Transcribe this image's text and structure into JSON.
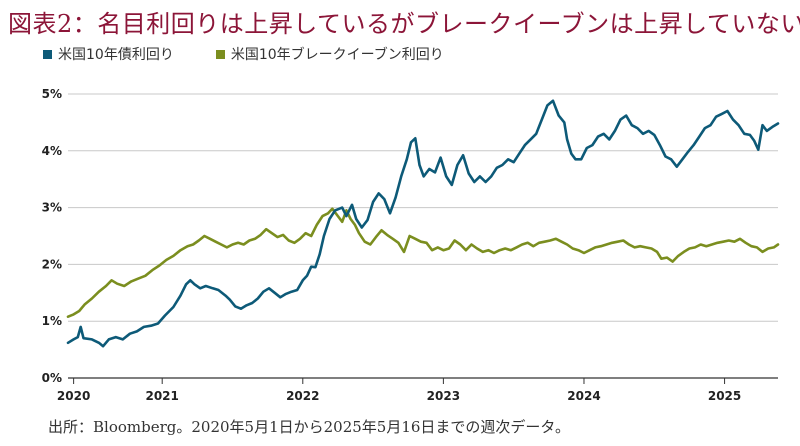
{
  "title": "図表2：名目利回りは上昇しているがブレークイーブンは上昇していない",
  "legend": [
    {
      "label": "米国10年債利回り",
      "color": "#0d5a78"
    },
    {
      "label": "米国10年ブレークイーブン利回り",
      "color": "#7b8e1f"
    }
  ],
  "source": "出所：Bloomberg。2020年5月1日から2025年5月16日までの週次データ。",
  "chart_data": {
    "type": "line",
    "title": "図表2：名目利回りは上昇しているがブレークイーブンは上昇していない",
    "xlabel": "",
    "ylabel": "",
    "x_ticks": [
      "2020",
      "2021",
      "2022",
      "2023",
      "2024",
      "2025"
    ],
    "y_ticks": [
      "0%",
      "1%",
      "2%",
      "3%",
      "4%",
      "5%"
    ],
    "ylim": [
      0,
      5
    ],
    "xlim": [
      2020.33,
      2025.38
    ],
    "grid": "horizontal",
    "series": [
      {
        "name": "米国10年債利回り",
        "color": "#0d5a78",
        "points": [
          [
            2020.33,
            0.62
          ],
          [
            2020.37,
            0.68
          ],
          [
            2020.4,
            0.72
          ],
          [
            2020.42,
            0.9
          ],
          [
            2020.44,
            0.7
          ],
          [
            2020.5,
            0.68
          ],
          [
            2020.55,
            0.62
          ],
          [
            2020.58,
            0.56
          ],
          [
            2020.62,
            0.68
          ],
          [
            2020.67,
            0.72
          ],
          [
            2020.72,
            0.68
          ],
          [
            2020.77,
            0.78
          ],
          [
            2020.82,
            0.82
          ],
          [
            2020.87,
            0.9
          ],
          [
            2020.92,
            0.92
          ],
          [
            2020.97,
            0.96
          ],
          [
            2021.02,
            1.1
          ],
          [
            2021.08,
            1.25
          ],
          [
            2021.13,
            1.45
          ],
          [
            2021.17,
            1.65
          ],
          [
            2021.2,
            1.72
          ],
          [
            2021.23,
            1.65
          ],
          [
            2021.27,
            1.58
          ],
          [
            2021.31,
            1.62
          ],
          [
            2021.36,
            1.58
          ],
          [
            2021.4,
            1.55
          ],
          [
            2021.45,
            1.45
          ],
          [
            2021.48,
            1.38
          ],
          [
            2021.52,
            1.26
          ],
          [
            2021.56,
            1.22
          ],
          [
            2021.6,
            1.28
          ],
          [
            2021.64,
            1.32
          ],
          [
            2021.68,
            1.4
          ],
          [
            2021.72,
            1.52
          ],
          [
            2021.76,
            1.58
          ],
          [
            2021.8,
            1.5
          ],
          [
            2021.84,
            1.42
          ],
          [
            2021.88,
            1.48
          ],
          [
            2021.92,
            1.52
          ],
          [
            2021.96,
            1.55
          ],
          [
            2022.0,
            1.72
          ],
          [
            2022.03,
            1.8
          ],
          [
            2022.06,
            1.96
          ],
          [
            2022.09,
            1.95
          ],
          [
            2022.12,
            2.18
          ],
          [
            2022.15,
            2.5
          ],
          [
            2022.19,
            2.8
          ],
          [
            2022.23,
            2.95
          ],
          [
            2022.28,
            3.0
          ],
          [
            2022.31,
            2.85
          ],
          [
            2022.35,
            3.05
          ],
          [
            2022.38,
            2.8
          ],
          [
            2022.42,
            2.65
          ],
          [
            2022.46,
            2.78
          ],
          [
            2022.5,
            3.1
          ],
          [
            2022.54,
            3.25
          ],
          [
            2022.58,
            3.15
          ],
          [
            2022.62,
            2.9
          ],
          [
            2022.66,
            3.18
          ],
          [
            2022.7,
            3.55
          ],
          [
            2022.74,
            3.85
          ],
          [
            2022.77,
            4.15
          ],
          [
            2022.8,
            4.22
          ],
          [
            2022.83,
            3.75
          ],
          [
            2022.86,
            3.55
          ],
          [
            2022.9,
            3.68
          ],
          [
            2022.94,
            3.62
          ],
          [
            2022.98,
            3.88
          ],
          [
            2023.02,
            3.55
          ],
          [
            2023.06,
            3.4
          ],
          [
            2023.1,
            3.75
          ],
          [
            2023.14,
            3.92
          ],
          [
            2023.18,
            3.6
          ],
          [
            2023.22,
            3.45
          ],
          [
            2023.26,
            3.55
          ],
          [
            2023.3,
            3.45
          ],
          [
            2023.34,
            3.55
          ],
          [
            2023.38,
            3.7
          ],
          [
            2023.42,
            3.75
          ],
          [
            2023.46,
            3.85
          ],
          [
            2023.5,
            3.8
          ],
          [
            2023.54,
            3.95
          ],
          [
            2023.58,
            4.1
          ],
          [
            2023.62,
            4.2
          ],
          [
            2023.66,
            4.3
          ],
          [
            2023.7,
            4.55
          ],
          [
            2023.74,
            4.8
          ],
          [
            2023.78,
            4.88
          ],
          [
            2023.82,
            4.62
          ],
          [
            2023.86,
            4.5
          ],
          [
            2023.88,
            4.2
          ],
          [
            2023.91,
            3.95
          ],
          [
            2023.94,
            3.85
          ],
          [
            2023.98,
            3.85
          ],
          [
            2024.02,
            4.05
          ],
          [
            2024.06,
            4.1
          ],
          [
            2024.1,
            4.25
          ],
          [
            2024.14,
            4.3
          ],
          [
            2024.18,
            4.2
          ],
          [
            2024.22,
            4.35
          ],
          [
            2024.26,
            4.55
          ],
          [
            2024.3,
            4.62
          ],
          [
            2024.34,
            4.45
          ],
          [
            2024.38,
            4.4
          ],
          [
            2024.42,
            4.3
          ],
          [
            2024.46,
            4.35
          ],
          [
            2024.5,
            4.28
          ],
          [
            2024.54,
            4.1
          ],
          [
            2024.58,
            3.9
          ],
          [
            2024.62,
            3.85
          ],
          [
            2024.66,
            3.72
          ],
          [
            2024.7,
            3.85
          ],
          [
            2024.74,
            3.98
          ],
          [
            2024.78,
            4.1
          ],
          [
            2024.82,
            4.25
          ],
          [
            2024.86,
            4.4
          ],
          [
            2024.9,
            4.45
          ],
          [
            2024.94,
            4.6
          ],
          [
            2024.98,
            4.65
          ],
          [
            2025.02,
            4.7
          ],
          [
            2025.06,
            4.55
          ],
          [
            2025.1,
            4.45
          ],
          [
            2025.14,
            4.3
          ],
          [
            2025.18,
            4.28
          ],
          [
            2025.21,
            4.18
          ],
          [
            2025.24,
            4.02
          ],
          [
            2025.27,
            4.45
          ],
          [
            2025.3,
            4.35
          ],
          [
            2025.34,
            4.42
          ],
          [
            2025.38,
            4.48
          ]
        ]
      },
      {
        "name": "米国10年ブレークイーブン利回り",
        "color": "#7b8e1f",
        "points": [
          [
            2020.33,
            1.08
          ],
          [
            2020.37,
            1.12
          ],
          [
            2020.41,
            1.18
          ],
          [
            2020.45,
            1.3
          ],
          [
            2020.5,
            1.4
          ],
          [
            2020.55,
            1.52
          ],
          [
            2020.6,
            1.62
          ],
          [
            2020.64,
            1.72
          ],
          [
            2020.68,
            1.66
          ],
          [
            2020.73,
            1.62
          ],
          [
            2020.78,
            1.7
          ],
          [
            2020.83,
            1.75
          ],
          [
            2020.88,
            1.8
          ],
          [
            2020.93,
            1.9
          ],
          [
            2020.98,
            1.98
          ],
          [
            2021.03,
            2.08
          ],
          [
            2021.08,
            2.15
          ],
          [
            2021.13,
            2.25
          ],
          [
            2021.18,
            2.32
          ],
          [
            2021.22,
            2.35
          ],
          [
            2021.26,
            2.42
          ],
          [
            2021.3,
            2.5
          ],
          [
            2021.34,
            2.45
          ],
          [
            2021.38,
            2.4
          ],
          [
            2021.42,
            2.35
          ],
          [
            2021.46,
            2.3
          ],
          [
            2021.5,
            2.35
          ],
          [
            2021.54,
            2.38
          ],
          [
            2021.58,
            2.35
          ],
          [
            2021.62,
            2.42
          ],
          [
            2021.66,
            2.45
          ],
          [
            2021.7,
            2.52
          ],
          [
            2021.74,
            2.62
          ],
          [
            2021.78,
            2.55
          ],
          [
            2021.82,
            2.48
          ],
          [
            2021.86,
            2.52
          ],
          [
            2021.9,
            2.42
          ],
          [
            2021.94,
            2.38
          ],
          [
            2021.98,
            2.45
          ],
          [
            2022.02,
            2.55
          ],
          [
            2022.06,
            2.5
          ],
          [
            2022.1,
            2.7
          ],
          [
            2022.14,
            2.85
          ],
          [
            2022.18,
            2.9
          ],
          [
            2022.21,
            2.98
          ],
          [
            2022.25,
            2.85
          ],
          [
            2022.28,
            2.75
          ],
          [
            2022.31,
            2.95
          ],
          [
            2022.34,
            2.8
          ],
          [
            2022.37,
            2.7
          ],
          [
            2022.4,
            2.55
          ],
          [
            2022.44,
            2.4
          ],
          [
            2022.48,
            2.35
          ],
          [
            2022.52,
            2.48
          ],
          [
            2022.56,
            2.6
          ],
          [
            2022.6,
            2.52
          ],
          [
            2022.64,
            2.45
          ],
          [
            2022.68,
            2.38
          ],
          [
            2022.72,
            2.22
          ],
          [
            2022.76,
            2.5
          ],
          [
            2022.8,
            2.45
          ],
          [
            2022.84,
            2.4
          ],
          [
            2022.88,
            2.38
          ],
          [
            2022.92,
            2.25
          ],
          [
            2022.96,
            2.3
          ],
          [
            2023.0,
            2.25
          ],
          [
            2023.04,
            2.28
          ],
          [
            2023.08,
            2.42
          ],
          [
            2023.12,
            2.35
          ],
          [
            2023.16,
            2.25
          ],
          [
            2023.2,
            2.35
          ],
          [
            2023.24,
            2.28
          ],
          [
            2023.28,
            2.22
          ],
          [
            2023.32,
            2.25
          ],
          [
            2023.36,
            2.2
          ],
          [
            2023.4,
            2.25
          ],
          [
            2023.44,
            2.28
          ],
          [
            2023.48,
            2.25
          ],
          [
            2023.52,
            2.3
          ],
          [
            2023.56,
            2.35
          ],
          [
            2023.6,
            2.38
          ],
          [
            2023.64,
            2.32
          ],
          [
            2023.68,
            2.38
          ],
          [
            2023.72,
            2.4
          ],
          [
            2023.76,
            2.42
          ],
          [
            2023.8,
            2.45
          ],
          [
            2023.84,
            2.4
          ],
          [
            2023.88,
            2.35
          ],
          [
            2023.92,
            2.28
          ],
          [
            2023.96,
            2.25
          ],
          [
            2024.0,
            2.2
          ],
          [
            2024.04,
            2.25
          ],
          [
            2024.08,
            2.3
          ],
          [
            2024.12,
            2.32
          ],
          [
            2024.16,
            2.35
          ],
          [
            2024.2,
            2.38
          ],
          [
            2024.24,
            2.4
          ],
          [
            2024.28,
            2.42
          ],
          [
            2024.32,
            2.35
          ],
          [
            2024.36,
            2.3
          ],
          [
            2024.4,
            2.32
          ],
          [
            2024.44,
            2.3
          ],
          [
            2024.48,
            2.28
          ],
          [
            2024.52,
            2.22
          ],
          [
            2024.55,
            2.1
          ],
          [
            2024.59,
            2.12
          ],
          [
            2024.63,
            2.05
          ],
          [
            2024.67,
            2.15
          ],
          [
            2024.71,
            2.22
          ],
          [
            2024.75,
            2.28
          ],
          [
            2024.79,
            2.3
          ],
          [
            2024.83,
            2.35
          ],
          [
            2024.87,
            2.32
          ],
          [
            2024.91,
            2.35
          ],
          [
            2024.95,
            2.38
          ],
          [
            2024.99,
            2.4
          ],
          [
            2025.03,
            2.42
          ],
          [
            2025.07,
            2.4
          ],
          [
            2025.11,
            2.45
          ],
          [
            2025.15,
            2.38
          ],
          [
            2025.19,
            2.32
          ],
          [
            2025.23,
            2.3
          ],
          [
            2025.27,
            2.22
          ],
          [
            2025.31,
            2.28
          ],
          [
            2025.35,
            2.3
          ],
          [
            2025.38,
            2.35
          ]
        ]
      }
    ]
  }
}
